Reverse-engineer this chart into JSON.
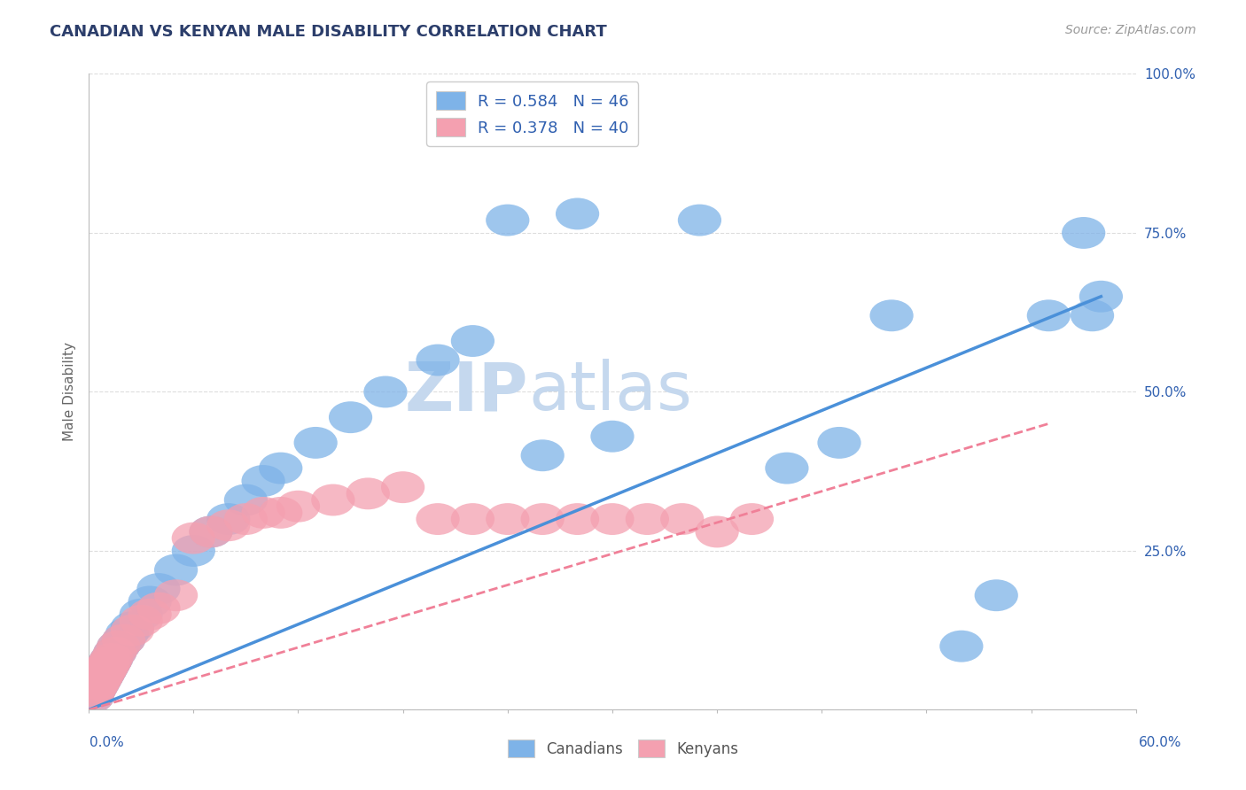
{
  "title": "CANADIAN VS KENYAN MALE DISABILITY CORRELATION CHART",
  "source_text": "Source: ZipAtlas.com",
  "ylabel": "Male Disability",
  "xlim": [
    0.0,
    60.0
  ],
  "ylim": [
    0.0,
    100.0
  ],
  "yticks": [
    0.0,
    25.0,
    50.0,
    75.0,
    100.0
  ],
  "ytick_labels": [
    "",
    "25.0%",
    "50.0%",
    "75.0%",
    "100.0%"
  ],
  "blue_R": 0.584,
  "blue_N": 46,
  "pink_R": 0.378,
  "pink_N": 40,
  "blue_color": "#7EB3E8",
  "pink_color": "#F4A0B0",
  "blue_line_color": "#4A90D9",
  "pink_line_color": "#F08098",
  "title_color": "#2C3E6B",
  "source_color": "#999999",
  "axis_color": "#BBBBBB",
  "grid_color": "#DDDDDD",
  "legend_text_color": "#3060B0",
  "watermark_color": "#D8E8F8",
  "blue_scatter_x": [
    0.2,
    0.3,
    0.4,
    0.5,
    0.6,
    0.7,
    0.8,
    0.9,
    1.0,
    1.1,
    1.2,
    1.3,
    1.5,
    1.7,
    2.0,
    2.2,
    2.5,
    3.0,
    3.5,
    4.0,
    5.0,
    6.0,
    7.0,
    8.0,
    9.0,
    10.0,
    11.0,
    13.0,
    15.0,
    17.0,
    20.0,
    22.0,
    24.0,
    26.0,
    28.0,
    30.0,
    35.0,
    40.0,
    43.0,
    46.0,
    50.0,
    52.0,
    55.0,
    57.0,
    57.5,
    58.0
  ],
  "blue_scatter_y": [
    2.0,
    3.0,
    3.5,
    4.0,
    4.5,
    5.0,
    5.5,
    6.0,
    6.5,
    7.0,
    7.5,
    8.0,
    9.0,
    10.0,
    11.0,
    12.0,
    13.0,
    15.0,
    17.0,
    19.0,
    22.0,
    25.0,
    28.0,
    30.0,
    33.0,
    36.0,
    38.0,
    42.0,
    46.0,
    50.0,
    55.0,
    58.0,
    77.0,
    40.0,
    78.0,
    43.0,
    77.0,
    38.0,
    42.0,
    62.0,
    10.0,
    18.0,
    62.0,
    75.0,
    62.0,
    65.0
  ],
  "pink_scatter_x": [
    0.2,
    0.3,
    0.4,
    0.5,
    0.6,
    0.7,
    0.8,
    0.9,
    1.0,
    1.1,
    1.2,
    1.3,
    1.5,
    1.7,
    2.0,
    2.5,
    3.0,
    3.5,
    4.0,
    5.0,
    6.0,
    7.0,
    8.0,
    9.0,
    10.0,
    11.0,
    12.0,
    14.0,
    16.0,
    18.0,
    20.0,
    22.0,
    24.0,
    26.0,
    28.0,
    30.0,
    32.0,
    34.0,
    36.0,
    38.0
  ],
  "pink_scatter_y": [
    2.0,
    3.0,
    3.5,
    4.0,
    4.5,
    5.0,
    5.5,
    6.0,
    6.5,
    7.0,
    7.5,
    8.0,
    9.0,
    10.0,
    11.0,
    12.5,
    14.0,
    15.0,
    16.0,
    18.0,
    27.0,
    28.0,
    29.0,
    30.0,
    31.0,
    31.0,
    32.0,
    33.0,
    34.0,
    35.0,
    30.0,
    30.0,
    30.0,
    30.0,
    30.0,
    30.0,
    30.0,
    30.0,
    28.0,
    30.0
  ],
  "blue_line_x0": 0.0,
  "blue_line_y0": 0.0,
  "blue_line_x1": 58.0,
  "blue_line_y1": 65.0,
  "pink_line_x0": 0.0,
  "pink_line_y0": 0.0,
  "pink_line_x1": 55.0,
  "pink_line_y1": 45.0
}
